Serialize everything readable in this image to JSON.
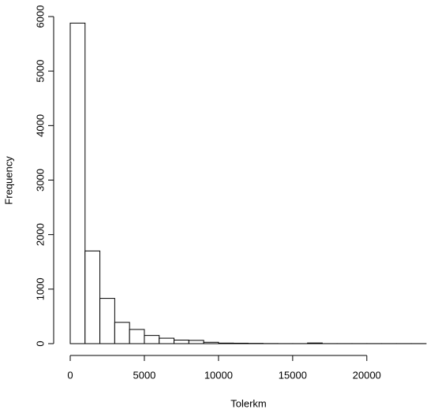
{
  "chart_data": {
    "type": "histogram",
    "x_label": "Tolerkm",
    "y_label": "Frequency",
    "bins": [
      0,
      1000,
      2000,
      3000,
      4000,
      5000,
      6000,
      7000,
      8000,
      9000,
      10000,
      11000,
      12000,
      13000,
      14000,
      15000,
      16000,
      17000,
      18000,
      19000,
      20000,
      21000,
      22000,
      23000,
      24000
    ],
    "values": [
      5880,
      1700,
      830,
      390,
      260,
      150,
      100,
      65,
      60,
      25,
      10,
      8,
      5,
      2,
      1,
      1,
      12,
      1,
      1,
      1,
      1,
      1,
      1,
      1
    ],
    "color": "#ffffff",
    "xlim": [
      0,
      24000
    ],
    "ylim": [
      0,
      6000
    ],
    "xticks": [
      0,
      5000,
      10000,
      15000,
      20000
    ],
    "yticks": [
      0,
      1000,
      2000,
      3000,
      4000,
      5000,
      6000
    ]
  }
}
